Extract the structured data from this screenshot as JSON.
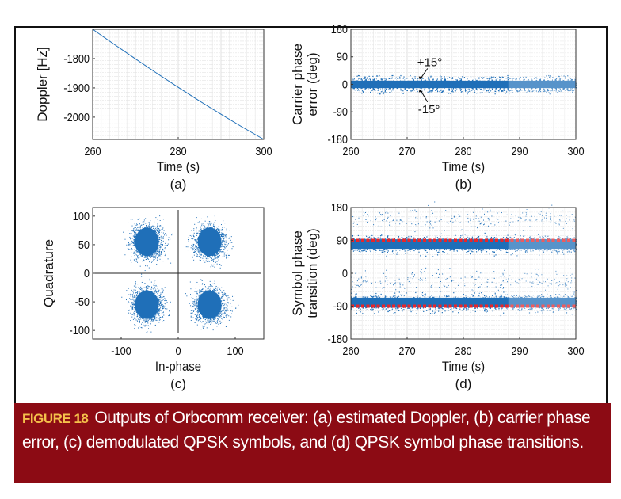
{
  "caption": {
    "label": "FIGURE 18",
    "text": "Outputs of Orbcomm receiver: (a) estimated Doppler, (b) carrier phase error, (c) demodulated QPSK symbols, and (d) QPSK symbol phase transitions."
  },
  "colors": {
    "series": "#1f6fb8",
    "reference": "#e8262a",
    "caption_bg": "#8c0b14",
    "caption_label": "#f5c14b"
  },
  "chart_data": [
    {
      "id": "a",
      "type": "line",
      "panel_label": "(a)",
      "xlabel": "Time (s)",
      "ylabel": "Doppler [Hz]",
      "xlim": [
        260,
        300
      ],
      "ylim": [
        -2076,
        -1700
      ],
      "xticks": [
        "260",
        "280",
        "300"
      ],
      "yticks": [
        "-1800",
        "-1900",
        "-2000"
      ],
      "grid": "minor",
      "x": [
        260,
        265,
        270,
        275,
        280,
        285,
        290,
        295,
        300
      ],
      "y": [
        -1700,
        -1751,
        -1801,
        -1850,
        -1898,
        -1945,
        -1990,
        -2034,
        -2076
      ]
    },
    {
      "id": "b",
      "type": "scatter",
      "panel_label": "(b)",
      "xlabel": "Time (s)",
      "ylabel": "Carrier phase error (deg)",
      "xlim": [
        260,
        300
      ],
      "ylim": [
        -180,
        180
      ],
      "xticks": [
        "260",
        "270",
        "280",
        "290",
        "300"
      ],
      "yticks": [
        "180",
        "90",
        "0",
        "-90",
        "-180"
      ],
      "grid": "minor",
      "scatter": {
        "center_deg": 0,
        "core_spread_deg": 15,
        "max_spread_deg": 30
      },
      "reference_lines": [
        15,
        -15
      ],
      "annotations": [
        {
          "text": "+15°",
          "target_deg": 15
        },
        {
          "text": "-15°",
          "target_deg": -15
        }
      ]
    },
    {
      "id": "c",
      "type": "scatter",
      "panel_label": "(c)",
      "xlabel": "In-phase",
      "ylabel": "Quadrature",
      "xlim": [
        -150,
        150
      ],
      "ylim": [
        -115,
        115
      ],
      "xticks": [
        "-100",
        "0",
        "100"
      ],
      "yticks": [
        "100",
        "50",
        "0",
        "-50",
        "-100"
      ],
      "grid": "off",
      "clusters": [
        {
          "x": -55,
          "y": 55,
          "spread": 25
        },
        {
          "x": 55,
          "y": 55,
          "spread": 25
        },
        {
          "x": -55,
          "y": -55,
          "spread": 25
        },
        {
          "x": 55,
          "y": -55,
          "spread": 25
        }
      ]
    },
    {
      "id": "d",
      "type": "scatter",
      "panel_label": "(d)",
      "xlabel": "Time (s)",
      "ylabel": "Symbol phase transition (deg)",
      "xlim": [
        260,
        300
      ],
      "ylim": [
        -180,
        180
      ],
      "xticks": [
        "260",
        "270",
        "280",
        "290",
        "300"
      ],
      "yticks": [
        "180",
        "90",
        "0",
        "-90",
        "-180"
      ],
      "grid": "minor",
      "bands": [
        {
          "center_deg": 80,
          "spread_deg": 20
        },
        {
          "center_deg": -80,
          "spread_deg": 20
        }
      ],
      "sparse_outliers_deg": [
        150,
        -20
      ],
      "reference_lines": [
        90,
        -90
      ]
    }
  ]
}
